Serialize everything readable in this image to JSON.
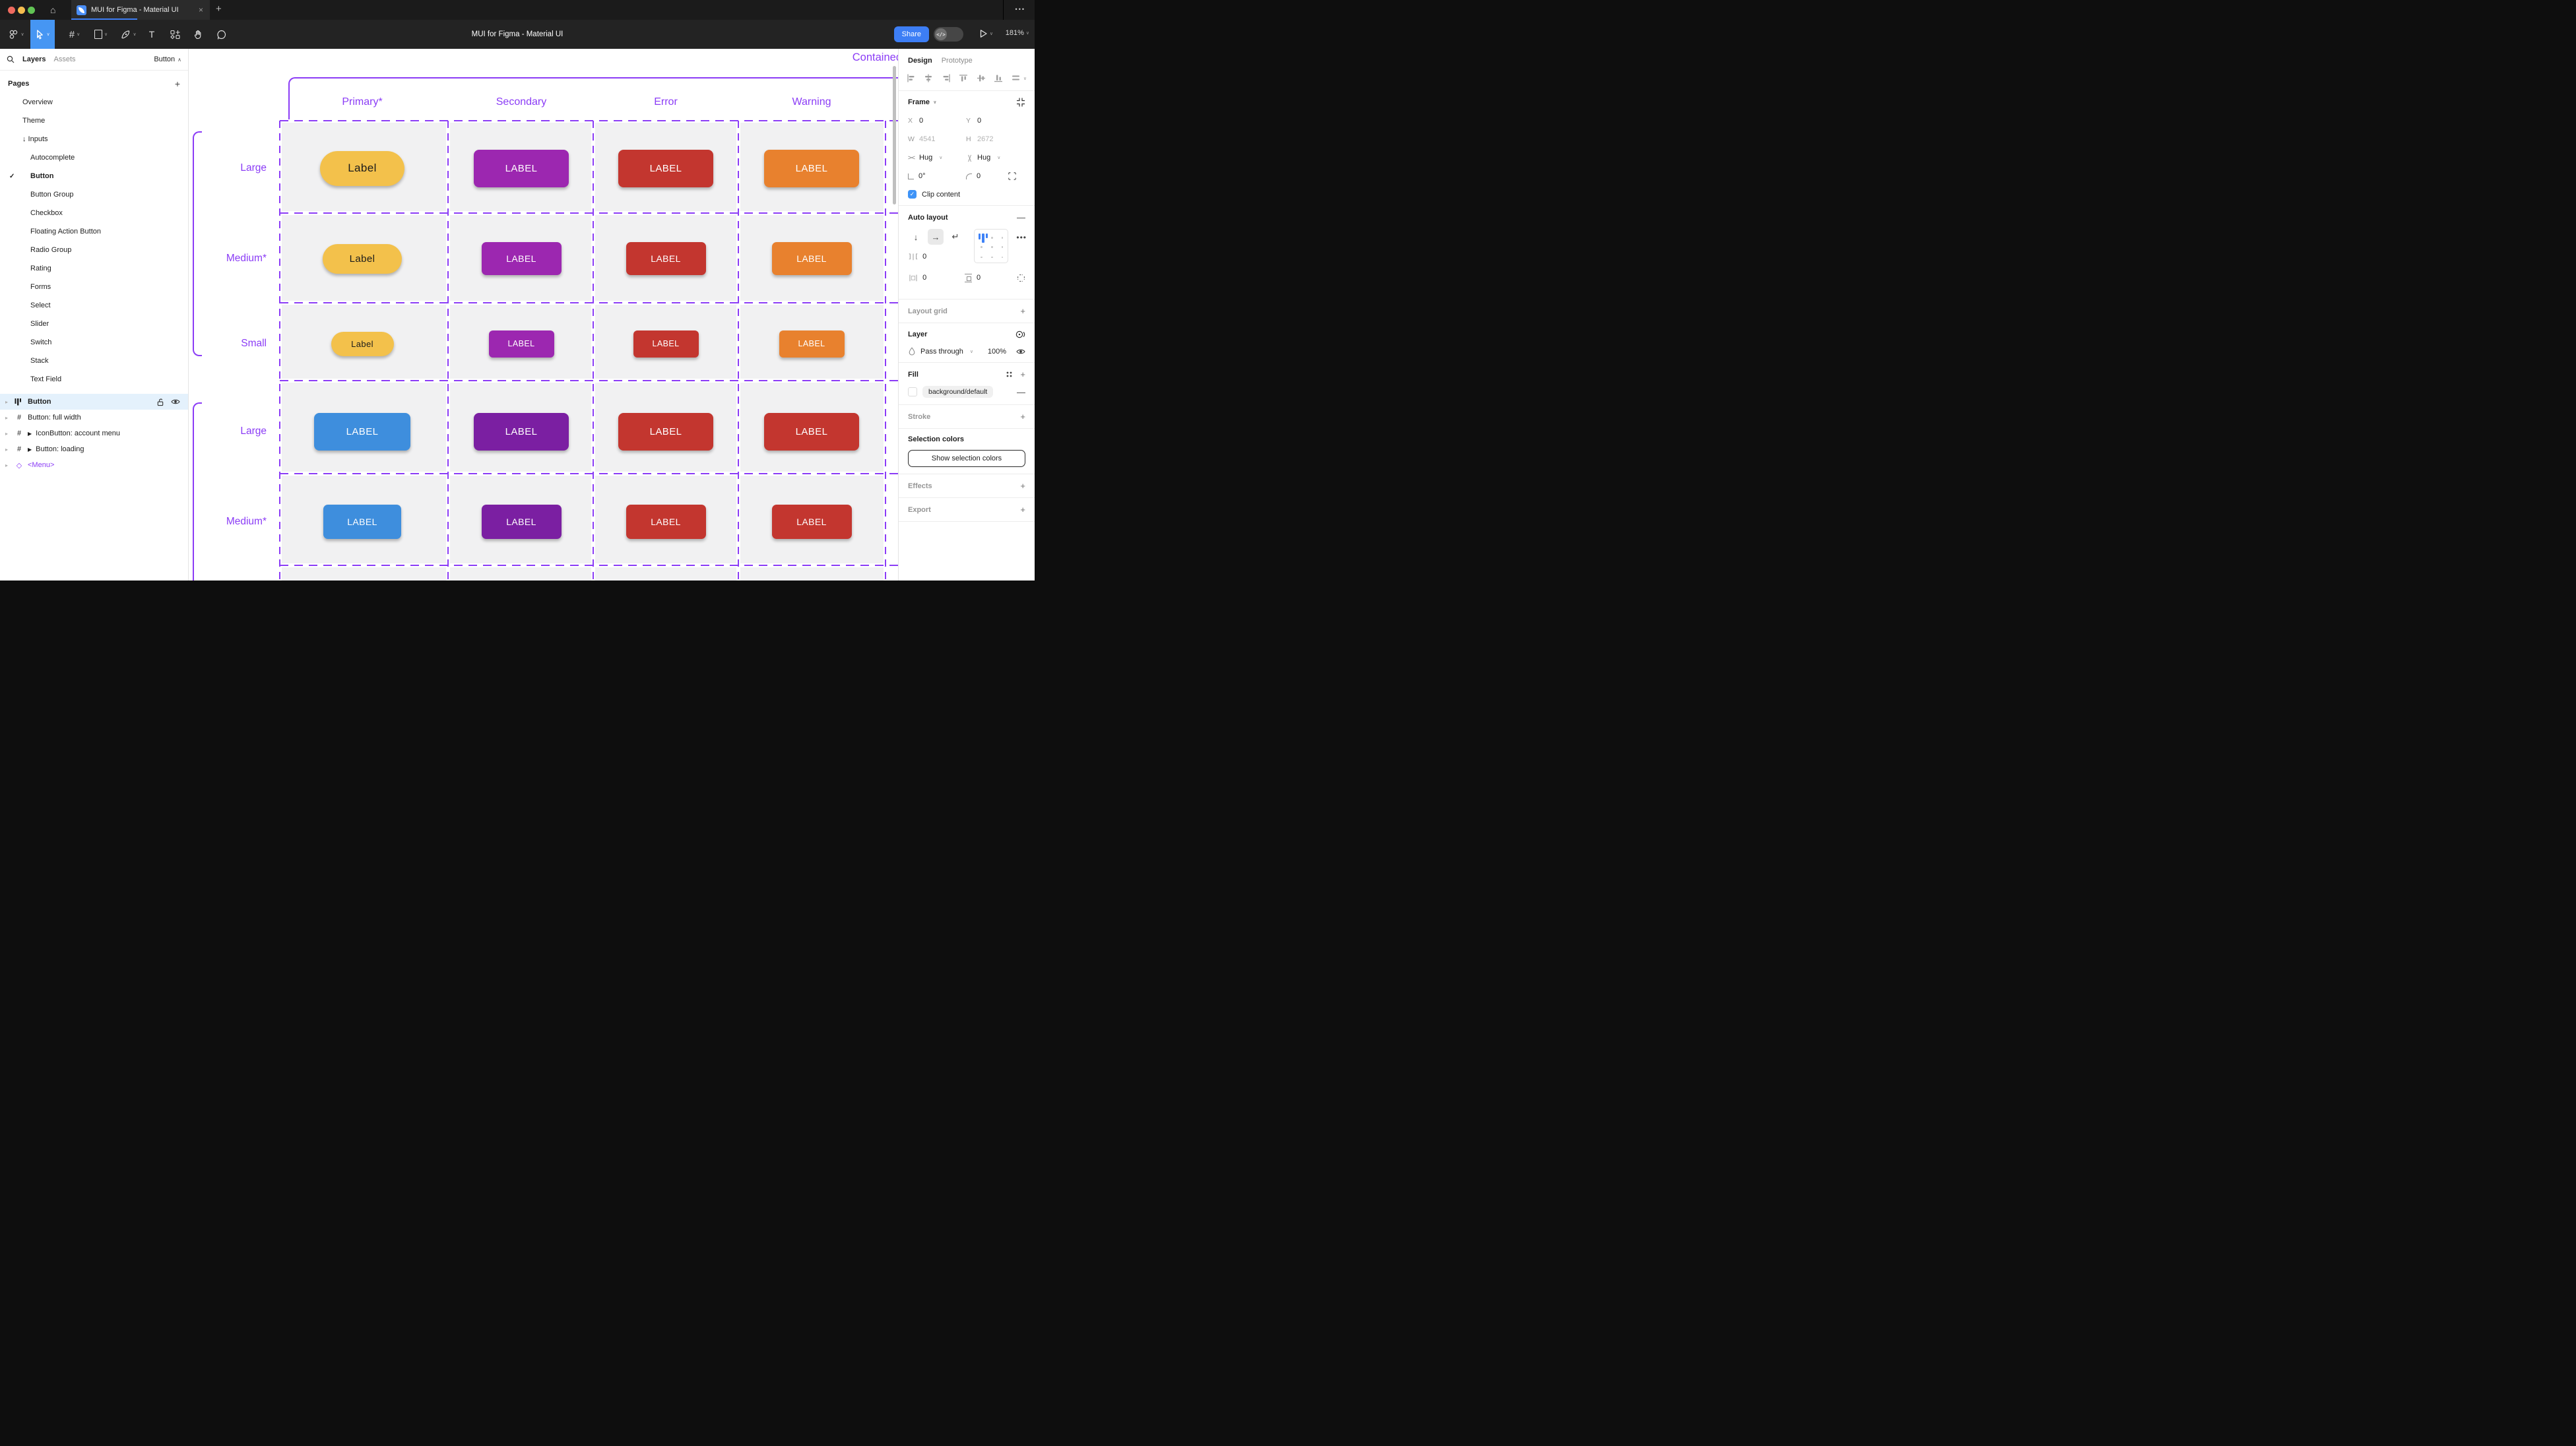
{
  "window": {
    "tab_title": "MUI for Figma - Material UI",
    "tab_close": "×",
    "new_tab": "+",
    "overflow_menu": "•••",
    "doc_title": "MUI for Figma - Material UI",
    "share_label": "Share",
    "zoom_level": "181%",
    "accent_blue": "#3d7ef5"
  },
  "sidebar": {
    "tab_layers": "Layers",
    "tab_assets": "Assets",
    "jump_label": "Button",
    "pages_header": "Pages",
    "pages": [
      {
        "label": "Overview",
        "indent": 1
      },
      {
        "label": "Theme",
        "indent": 1
      },
      {
        "label": "Inputs",
        "indent": 1,
        "prefix": "↓"
      },
      {
        "label": "Autocomplete",
        "indent": 2
      },
      {
        "label": "Button",
        "indent": 2,
        "checked": true
      },
      {
        "label": "Button Group",
        "indent": 2
      },
      {
        "label": "Checkbox",
        "indent": 2
      },
      {
        "label": "Floating Action Button",
        "indent": 2
      },
      {
        "label": "Radio Group",
        "indent": 2
      },
      {
        "label": "Rating",
        "indent": 2
      },
      {
        "label": "Forms",
        "indent": 2
      },
      {
        "label": "Select",
        "indent": 2
      },
      {
        "label": "Slider",
        "indent": 2
      },
      {
        "label": "Switch",
        "indent": 2
      },
      {
        "label": "Stack",
        "indent": 2
      },
      {
        "label": "Text Field",
        "indent": 2
      }
    ],
    "layers": [
      {
        "icon": "auto-layout",
        "label": "Button",
        "selected": true
      },
      {
        "icon": "frame",
        "label": "Button: full width"
      },
      {
        "icon": "frame",
        "label": "IconButton: account menu",
        "play": true
      },
      {
        "icon": "frame",
        "label": "Button: loading",
        "play": true
      },
      {
        "icon": "component",
        "label": "<Menu>",
        "component": true
      }
    ]
  },
  "canvas": {
    "section_label": "Contained",
    "accent": "#8b3cf6",
    "cell_bg": "#f1f1f2",
    "columns": [
      "Primary*",
      "Secondary",
      "Error",
      "Warning"
    ],
    "rows": [
      {
        "label": "Large",
        "buttons": [
          {
            "text": "Label",
            "bg": "#F3C14B",
            "fg": "#1B1B1B",
            "w": 128,
            "h": 53,
            "r": 27,
            "fs": 17
          },
          {
            "text": "LABEL",
            "bg": "#9C27B0",
            "fg": "#FFFFFF",
            "w": 144,
            "h": 57,
            "r": 8,
            "fs": 15
          },
          {
            "text": "LABEL",
            "bg": "#C3362F",
            "fg": "#FFFFFF",
            "w": 144,
            "h": 57,
            "r": 8,
            "fs": 15
          },
          {
            "text": "LABEL",
            "bg": "#E8812E",
            "fg": "#FFFFFF",
            "w": 144,
            "h": 57,
            "r": 8,
            "fs": 15
          }
        ]
      },
      {
        "label": "Medium*",
        "buttons": [
          {
            "text": "Label",
            "bg": "#F3C14B",
            "fg": "#1B1B1B",
            "w": 120,
            "h": 45,
            "r": 23,
            "fs": 15
          },
          {
            "text": "LABEL",
            "bg": "#9C27B0",
            "fg": "#FFFFFF",
            "w": 121,
            "h": 50,
            "r": 7,
            "fs": 14
          },
          {
            "text": "LABEL",
            "bg": "#C3362F",
            "fg": "#FFFFFF",
            "w": 121,
            "h": 50,
            "r": 7,
            "fs": 14
          },
          {
            "text": "LABEL",
            "bg": "#E8812E",
            "fg": "#FFFFFF",
            "w": 121,
            "h": 50,
            "r": 7,
            "fs": 14
          }
        ]
      },
      {
        "label": "Small",
        "buttons": [
          {
            "text": "Label",
            "bg": "#F3C14B",
            "fg": "#1B1B1B",
            "w": 95,
            "h": 37,
            "r": 19,
            "fs": 13
          },
          {
            "text": "LABEL",
            "bg": "#9C27B0",
            "fg": "#FFFFFF",
            "w": 99,
            "h": 41,
            "r": 6,
            "fs": 12.5
          },
          {
            "text": "LABEL",
            "bg": "#C3362F",
            "fg": "#FFFFFF",
            "w": 99,
            "h": 41,
            "r": 6,
            "fs": 12.5
          },
          {
            "text": "LABEL",
            "bg": "#E8812E",
            "fg": "#FFFFFF",
            "w": 99,
            "h": 41,
            "r": 6,
            "fs": 12.5
          }
        ]
      },
      {
        "label": "Large",
        "buttons": [
          {
            "text": "LABEL",
            "bg": "#3E8EDD",
            "fg": "#FFFFFF",
            "w": 146,
            "h": 57,
            "r": 8,
            "fs": 15
          },
          {
            "text": "LABEL",
            "bg": "#7B1FA2",
            "fg": "#FFFFFF",
            "w": 144,
            "h": 57,
            "r": 8,
            "fs": 15
          },
          {
            "text": "LABEL",
            "bg": "#C3362F",
            "fg": "#FFFFFF",
            "w": 144,
            "h": 57,
            "r": 8,
            "fs": 15
          },
          {
            "text": "LABEL",
            "bg": "#C3362F",
            "fg": "#FFFFFF",
            "w": 144,
            "h": 57,
            "r": 8,
            "fs": 15
          }
        ]
      },
      {
        "label": "Medium*",
        "buttons": [
          {
            "text": "LABEL",
            "bg": "#3E8EDD",
            "fg": "#FFFFFF",
            "w": 118,
            "h": 52,
            "r": 7,
            "fs": 14
          },
          {
            "text": "LABEL",
            "bg": "#7B1FA2",
            "fg": "#FFFFFF",
            "w": 121,
            "h": 52,
            "r": 7,
            "fs": 14
          },
          {
            "text": "LABEL",
            "bg": "#C3362F",
            "fg": "#FFFFFF",
            "w": 121,
            "h": 52,
            "r": 7,
            "fs": 14
          },
          {
            "text": "LABEL",
            "bg": "#C3362F",
            "fg": "#FFFFFF",
            "w": 121,
            "h": 52,
            "r": 7,
            "fs": 14
          }
        ]
      }
    ]
  },
  "right_panel": {
    "tab_design": "Design",
    "tab_prototype": "Prototype",
    "frame": {
      "title": "Frame",
      "x_label": "X",
      "x": "0",
      "y_label": "Y",
      "y": "0",
      "w_label": "W",
      "w": "4541",
      "h_label": "H",
      "h": "2672",
      "hug_h": "Hug",
      "hug_v": "Hug",
      "rotation": "0°",
      "radius": "0",
      "clip_label": "Clip content"
    },
    "auto_layout": {
      "title": "Auto layout",
      "gap": "0",
      "padding_h": "0",
      "padding_v": "0"
    },
    "layout_grid": {
      "title": "Layout grid"
    },
    "layer": {
      "title": "Layer",
      "blend_mode": "Pass through",
      "opacity": "100%"
    },
    "fill": {
      "title": "Fill",
      "token": "background/default"
    },
    "stroke": {
      "title": "Stroke"
    },
    "selection_colors": {
      "title": "Selection colors",
      "button_label": "Show selection colors"
    },
    "effects": {
      "title": "Effects"
    },
    "export": {
      "title": "Export"
    }
  }
}
